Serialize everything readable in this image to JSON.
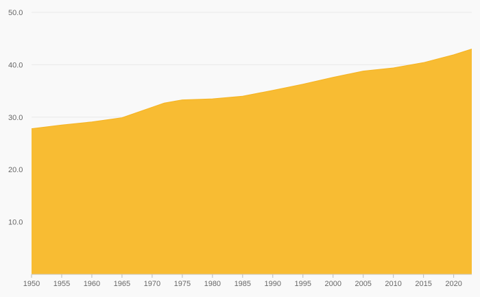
{
  "chart_data": {
    "type": "area",
    "title": "",
    "xlabel": "",
    "ylabel": "",
    "x": [
      1950,
      1955,
      1960,
      1965,
      1970,
      1972,
      1975,
      1978,
      1980,
      1985,
      1990,
      1995,
      2000,
      2005,
      2010,
      2015,
      2020,
      2023
    ],
    "values": [
      27.8,
      28.5,
      29.1,
      29.9,
      31.9,
      32.7,
      33.3,
      33.4,
      33.5,
      34.0,
      35.1,
      36.3,
      37.6,
      38.8,
      39.4,
      40.4,
      41.9,
      43.0
    ],
    "x_tick_labels": [
      "1950",
      "1955",
      "1960",
      "1965",
      "1970",
      "1975",
      "1980",
      "1985",
      "1990",
      "1995",
      "2000",
      "2005",
      "2010",
      "2015",
      "2020"
    ],
    "x_tick_values": [
      1950,
      1955,
      1960,
      1965,
      1970,
      1975,
      1980,
      1985,
      1990,
      1995,
      2000,
      2005,
      2010,
      2015,
      2020
    ],
    "y_tick_labels": [
      "10.0",
      "20.0",
      "30.0",
      "40.0",
      "50.0"
    ],
    "y_tick_values": [
      10,
      20,
      30,
      40,
      50
    ],
    "xlim": [
      1950,
      2023
    ],
    "ylim": [
      0,
      50
    ],
    "grid": true,
    "legend": "none",
    "colors": {
      "area_fill": "#f8bc33",
      "area_edge": "#f5b321",
      "background": "#f9f9f9",
      "gridline": "#e9e9e9",
      "axis_line": "#cccccc",
      "tick_mark": "#bbbbbb",
      "tick_text": "#666666"
    }
  }
}
